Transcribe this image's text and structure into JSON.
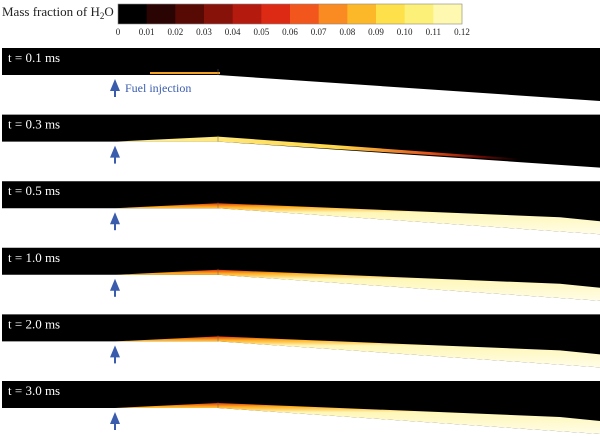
{
  "colorbar": {
    "title": "Mass fraction of H",
    "title_subscript": "2",
    "title_suffix": "O",
    "ticks": [
      "0",
      "0.01",
      "0.02",
      "0.03",
      "0.04",
      "0.05",
      "0.06",
      "0.07",
      "0.08",
      "0.09",
      "0.10",
      "0.11",
      "0.12"
    ]
  },
  "panels": [
    {
      "label": "t = 0.1 ms"
    },
    {
      "label": "t = 0.3 ms"
    },
    {
      "label": "t = 0.5 ms"
    },
    {
      "label": "t = 1.0 ms"
    },
    {
      "label": "t = 2.0 ms"
    },
    {
      "label": "t = 3.0 ms"
    }
  ],
  "annotation": "Fuel injection"
}
